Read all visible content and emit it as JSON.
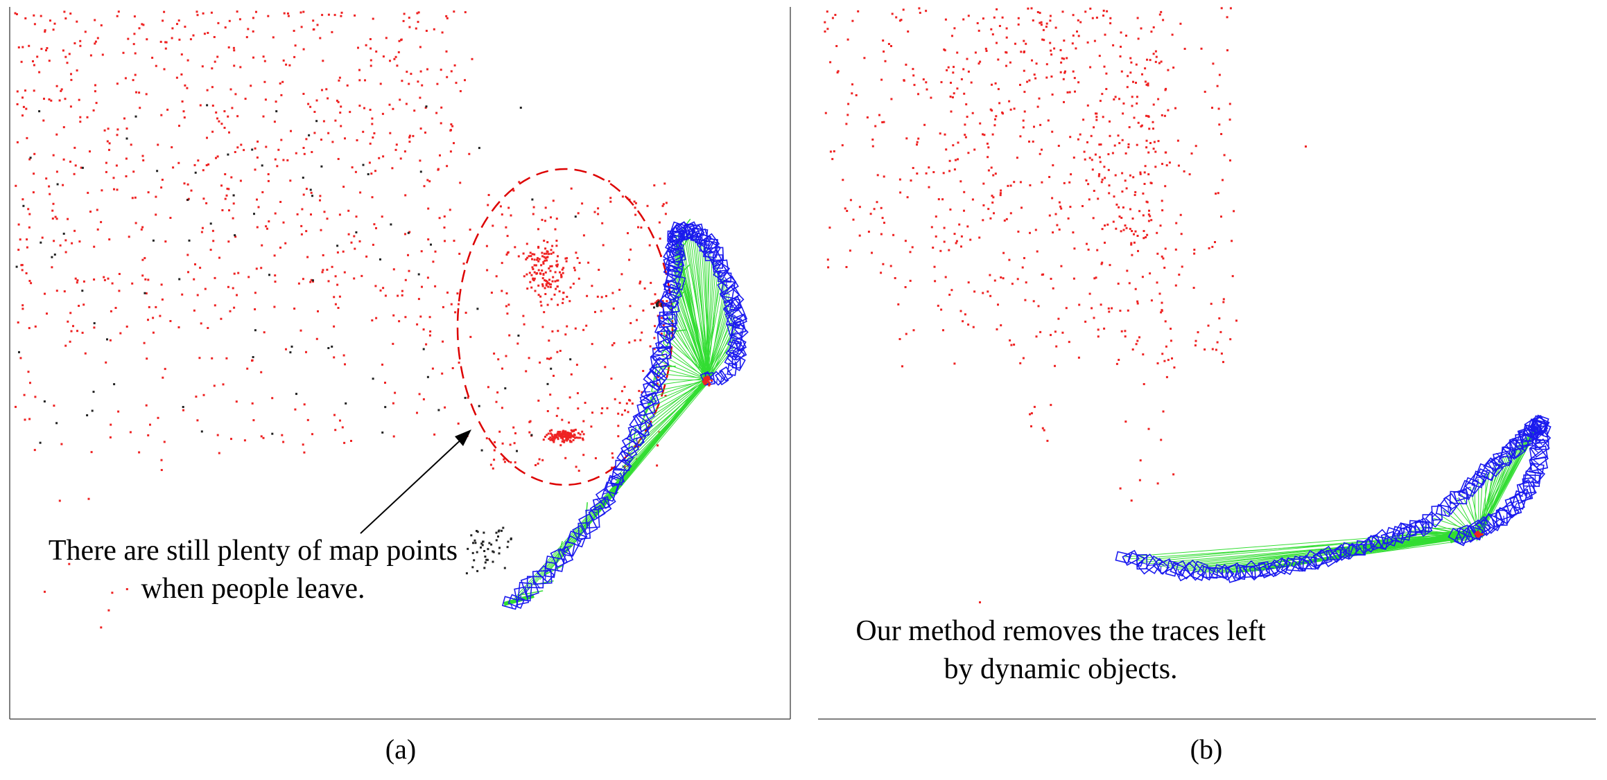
{
  "figure": {
    "panel_a": {
      "label": "(a)",
      "annotation_lines": [
        "There are still plenty of map points",
        "when people leave."
      ]
    },
    "panel_b": {
      "label": "(b)",
      "annotation_lines": [
        "Our method removes the traces left",
        "by dynamic objects."
      ]
    }
  },
  "colors": {
    "map_point": "#ee2222",
    "dynamic_point": "#222222",
    "keyframe": "#1a1aee",
    "covisibility_edge": "#33dd33",
    "highlight_ellipse": "#dd0000",
    "axes_frame": "#555555"
  }
}
